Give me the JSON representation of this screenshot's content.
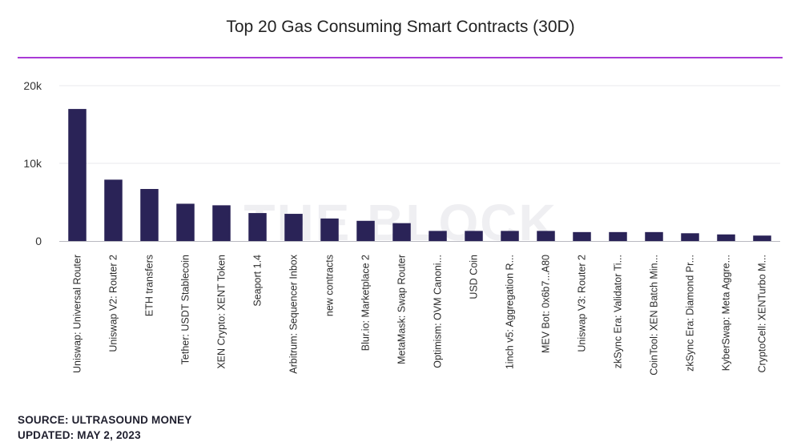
{
  "title": "Top 20 Gas Consuming Smart Contracts (30D)",
  "watermark": "THE BLOCK",
  "footer": {
    "source": "SOURCE: ULTRASOUND MONEY",
    "updated": "UPDATED: MAY 2, 2023"
  },
  "colors": {
    "bar": "#2a2357",
    "accent_rule": "#a93ad6",
    "grid": "#e9e9ee",
    "axis": "#b8b8c0",
    "watermark": "#efeff2"
  },
  "chart_data": {
    "type": "bar",
    "categories": [
      "Uniswap: Universal Router",
      "Uniswap V2: Router 2",
      "ETH transfers",
      "Tether: USDT Stablecoin",
      "XEN Crypto: XENT Token",
      "Seaport 1.4",
      "Arbitrum: Sequencer Inbox",
      "new contracts",
      "Blur.io: Marketplace 2",
      "MetaMask: Swap Router",
      "Optimism: OVM Canoni...",
      "USD Coin",
      "1inch v5: Aggregation R...",
      "MEV Bot: 0x6b7...A80",
      "Uniswap V3: Router 2",
      "zkSync Era: Validator Ti...",
      "CoinTool: XEN Batch Min...",
      "zkSync Era: Diamond Pr...",
      "KyberSwap: Meta Aggre...",
      "CryptoCell: XENTurbo M..."
    ],
    "values": [
      17000,
      7900,
      6700,
      4800,
      4600,
      3600,
      3500,
      2900,
      2600,
      2300,
      1300,
      1300,
      1300,
      1300,
      1150,
      1150,
      1150,
      1000,
      850,
      700
    ],
    "yticks": [
      0,
      10000,
      20000
    ],
    "ytick_labels": [
      "0",
      "10k",
      "20k"
    ],
    "ylim": [
      0,
      20000
    ],
    "grid": true,
    "legend": "none",
    "xlabel": "",
    "ylabel": ""
  }
}
